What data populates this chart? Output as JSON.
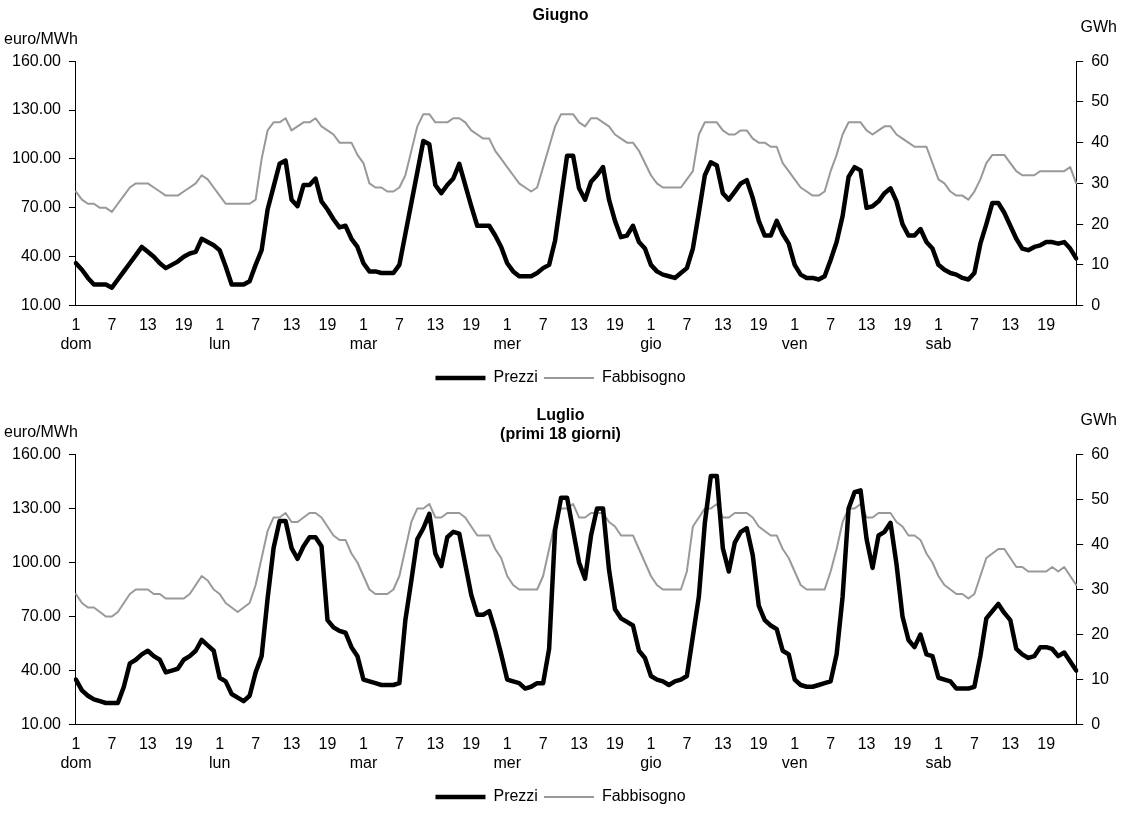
{
  "chart_data": [
    {
      "type": "line",
      "title": "Giugno",
      "ylabel": "euro/MWh",
      "y2label": "GWh",
      "legend": "bottom",
      "grid": false,
      "marker": "none",
      "categories": [
        "1\ndom",
        null,
        null,
        null,
        null,
        null,
        "7",
        null,
        null,
        null,
        null,
        null,
        "13",
        null,
        null,
        null,
        null,
        null,
        "19",
        null,
        null,
        null,
        null,
        null,
        "1\nlun",
        null,
        null,
        null,
        null,
        null,
        "7",
        null,
        null,
        null,
        null,
        null,
        "13",
        null,
        null,
        null,
        null,
        null,
        "19",
        null,
        null,
        null,
        null,
        null,
        "1\nmar",
        null,
        null,
        null,
        null,
        null,
        "7",
        null,
        null,
        null,
        null,
        null,
        "13",
        null,
        null,
        null,
        null,
        null,
        "19",
        null,
        null,
        null,
        null,
        null,
        "1\nmer",
        null,
        null,
        null,
        null,
        null,
        "7",
        null,
        null,
        null,
        null,
        null,
        "13",
        null,
        null,
        null,
        null,
        null,
        "19",
        null,
        null,
        null,
        null,
        null,
        "1\ngio",
        null,
        null,
        null,
        null,
        null,
        "7",
        null,
        null,
        null,
        null,
        null,
        "13",
        null,
        null,
        null,
        null,
        null,
        "19",
        null,
        null,
        null,
        null,
        null,
        "1\nven",
        null,
        null,
        null,
        null,
        null,
        "7",
        null,
        null,
        null,
        null,
        null,
        "13",
        null,
        null,
        null,
        null,
        null,
        "19",
        null,
        null,
        null,
        null,
        null,
        "1\nsab",
        null,
        null,
        null,
        null,
        null,
        "7",
        null,
        null,
        null,
        null,
        null,
        "13",
        null,
        null,
        null,
        null,
        null,
        "19",
        null,
        null,
        null,
        null,
        null
      ],
      "ylim": [
        10,
        160
      ],
      "yticks": [
        {
          "value": 10,
          "label": "10.00"
        },
        {
          "value": 40,
          "label": "40.00"
        },
        {
          "value": 70,
          "label": "70.00"
        },
        {
          "value": 100,
          "label": "100.00"
        },
        {
          "value": 130,
          "label": "130.00"
        },
        {
          "value": 160,
          "label": "160.00"
        }
      ],
      "y2lim": [
        0,
        60
      ],
      "y2ticks": [
        0,
        10,
        20,
        30,
        40,
        50,
        60
      ],
      "series": [
        {
          "name": "Prezzi",
          "color": "#000000",
          "axis": "y",
          "values": [
            36,
            32,
            27,
            23,
            23,
            23,
            21,
            26,
            31,
            36,
            41,
            46,
            43,
            40,
            36,
            33,
            35,
            37,
            40,
            42,
            43,
            51,
            49,
            47,
            44,
            34,
            23,
            23,
            23,
            25,
            35,
            44,
            69,
            83,
            97,
            99,
            75,
            71,
            84,
            84,
            88,
            74,
            69,
            63,
            58,
            59,
            51,
            46,
            36,
            31,
            31,
            30,
            30,
            30,
            35,
            54,
            73,
            92,
            111,
            109,
            84,
            79,
            84,
            88,
            97,
            84,
            71,
            59,
            59,
            59,
            53,
            46,
            36,
            31,
            28,
            28,
            28,
            30,
            33,
            35,
            50,
            76,
            102,
            102,
            82,
            75,
            86,
            90,
            95,
            75,
            62,
            52,
            53,
            59,
            49,
            45,
            35,
            31,
            29,
            28,
            27,
            30,
            33,
            45,
            67,
            90,
            98,
            96,
            79,
            75,
            80,
            85,
            87,
            76,
            62,
            53,
            53,
            62,
            54,
            48,
            35,
            29,
            27,
            27,
            26,
            28,
            38,
            49,
            65,
            89,
            95,
            93,
            70,
            71,
            74,
            79,
            82,
            74,
            60,
            53,
            53,
            57,
            49,
            45,
            35,
            32,
            30,
            29,
            27,
            26,
            30,
            48,
            60,
            73,
            73,
            67,
            59,
            51,
            45,
            44,
            46,
            47,
            49,
            49,
            48,
            49,
            45,
            39
          ]
        },
        {
          "name": "Fabbisogno",
          "color": "#999999",
          "axis": "y2",
          "values": [
            28,
            26,
            25,
            25,
            24,
            24,
            23,
            25,
            27,
            29,
            30,
            30,
            30,
            29,
            28,
            27,
            27,
            27,
            28,
            29,
            30,
            32,
            31,
            29,
            27,
            25,
            25,
            25,
            25,
            25,
            26,
            36,
            43,
            45,
            45,
            46,
            43,
            44,
            45,
            45,
            46,
            44,
            43,
            42,
            40,
            40,
            40,
            37,
            35,
            30,
            29,
            29,
            28,
            28,
            29,
            32,
            38,
            44,
            47,
            47,
            45,
            45,
            45,
            46,
            46,
            45,
            43,
            42,
            41,
            41,
            38,
            36,
            34,
            32,
            30,
            29,
            28,
            29,
            34,
            39,
            44,
            47,
            47,
            47,
            45,
            44,
            46,
            46,
            45,
            44,
            42,
            41,
            40,
            40,
            38,
            35,
            32,
            30,
            29,
            29,
            29,
            29,
            31,
            33,
            42,
            45,
            45,
            45,
            43,
            42,
            42,
            43,
            43,
            41,
            40,
            40,
            39,
            39,
            35,
            33,
            31,
            29,
            28,
            27,
            27,
            28,
            33,
            37,
            42,
            45,
            45,
            45,
            43,
            42,
            43,
            44,
            44,
            42,
            41,
            40,
            39,
            39,
            39,
            35,
            31,
            30,
            28,
            27,
            27,
            26,
            28,
            31,
            35,
            37,
            37,
            37,
            35,
            33,
            32,
            32,
            32,
            33,
            33,
            33,
            33,
            33,
            34,
            30
          ]
        }
      ]
    },
    {
      "type": "line",
      "title": "Luglio",
      "subtitle": "(primi 18 giorni)",
      "ylabel": "euro/MWh",
      "y2label": "GWh",
      "legend": "bottom",
      "grid": false,
      "marker": "none",
      "categories": [
        "1\ndom",
        null,
        null,
        null,
        null,
        null,
        "7",
        null,
        null,
        null,
        null,
        null,
        "13",
        null,
        null,
        null,
        null,
        null,
        "19",
        null,
        null,
        null,
        null,
        null,
        "1\nlun",
        null,
        null,
        null,
        null,
        null,
        "7",
        null,
        null,
        null,
        null,
        null,
        "13",
        null,
        null,
        null,
        null,
        null,
        "19",
        null,
        null,
        null,
        null,
        null,
        "1\nmar",
        null,
        null,
        null,
        null,
        null,
        "7",
        null,
        null,
        null,
        null,
        null,
        "13",
        null,
        null,
        null,
        null,
        null,
        "19",
        null,
        null,
        null,
        null,
        null,
        "1\nmer",
        null,
        null,
        null,
        null,
        null,
        "7",
        null,
        null,
        null,
        null,
        null,
        "13",
        null,
        null,
        null,
        null,
        null,
        "19",
        null,
        null,
        null,
        null,
        null,
        "1\ngio",
        null,
        null,
        null,
        null,
        null,
        "7",
        null,
        null,
        null,
        null,
        null,
        "13",
        null,
        null,
        null,
        null,
        null,
        "19",
        null,
        null,
        null,
        null,
        null,
        "1\nven",
        null,
        null,
        null,
        null,
        null,
        "7",
        null,
        null,
        null,
        null,
        null,
        "13",
        null,
        null,
        null,
        null,
        null,
        "19",
        null,
        null,
        null,
        null,
        null,
        "1\nsab",
        null,
        null,
        null,
        null,
        null,
        "7",
        null,
        null,
        null,
        null,
        null,
        "13",
        null,
        null,
        null,
        null,
        null,
        "19",
        null,
        null,
        null,
        null,
        null
      ],
      "ylim": [
        10,
        160
      ],
      "yticks": [
        {
          "value": 10,
          "label": "10.00"
        },
        {
          "value": 40,
          "label": "40.00"
        },
        {
          "value": 70,
          "label": "70.00"
        },
        {
          "value": 100,
          "label": "100.00"
        },
        {
          "value": 130,
          "label": "130.00"
        },
        {
          "value": 160,
          "label": "160.00"
        }
      ],
      "y2lim": [
        0,
        60
      ],
      "y2ticks": [
        0,
        10,
        20,
        30,
        40,
        50,
        60
      ],
      "series": [
        {
          "name": "Prezzi",
          "color": "#000000",
          "axis": "y",
          "values": [
            35,
            29,
            26,
            24,
            23,
            22,
            22,
            22,
            31,
            44,
            46,
            49,
            51,
            48,
            46,
            39,
            40,
            41,
            46,
            48,
            51,
            57,
            54,
            51,
            36,
            34,
            27,
            25,
            23,
            26,
            39,
            48,
            80,
            108,
            123,
            123,
            108,
            102,
            109,
            114,
            114,
            109,
            68,
            64,
            62,
            61,
            53,
            48,
            35,
            34,
            33,
            32,
            32,
            32,
            33,
            68,
            90,
            113,
            119,
            127,
            105,
            98,
            114,
            117,
            116,
            99,
            82,
            71,
            71,
            73,
            62,
            49,
            35,
            34,
            33,
            30,
            31,
            33,
            33,
            52,
            118,
            136,
            136,
            118,
            100,
            91,
            115,
            130,
            130,
            96,
            74,
            69,
            67,
            65,
            51,
            47,
            37,
            35,
            34,
            32,
            34,
            35,
            37,
            59,
            81,
            122,
            148,
            148,
            108,
            95,
            111,
            117,
            119,
            104,
            76,
            68,
            65,
            63,
            51,
            49,
            35,
            32,
            31,
            31,
            32,
            33,
            34,
            49,
            81,
            130,
            139,
            140,
            113,
            97,
            115,
            117,
            122,
            99,
            70,
            57,
            53,
            60,
            49,
            48,
            36,
            35,
            34,
            30,
            30,
            30,
            31,
            48,
            69,
            73,
            77,
            72,
            68,
            52,
            49,
            47,
            48,
            53,
            53,
            52,
            48,
            50,
            45,
            40
          ]
        },
        {
          "name": "Fabbisogno",
          "color": "#999999",
          "axis": "y2",
          "values": [
            29,
            27,
            26,
            26,
            25,
            24,
            24,
            25,
            27,
            29,
            30,
            30,
            30,
            29,
            29,
            28,
            28,
            28,
            28,
            29,
            31,
            33,
            32,
            30,
            29,
            27,
            26,
            25,
            26,
            27,
            31,
            37,
            43,
            46,
            46,
            47,
            45,
            45,
            46,
            47,
            47,
            46,
            44,
            42,
            41,
            41,
            38,
            36,
            33,
            30,
            29,
            29,
            29,
            30,
            33,
            39,
            45,
            48,
            48,
            49,
            46,
            46,
            47,
            47,
            47,
            46,
            44,
            42,
            42,
            42,
            39,
            37,
            33,
            31,
            30,
            30,
            30,
            30,
            33,
            39,
            45,
            48,
            48,
            49,
            46,
            46,
            47,
            47,
            47,
            45,
            44,
            42,
            42,
            42,
            39,
            36,
            33,
            31,
            30,
            30,
            30,
            30,
            34,
            44,
            46,
            48,
            48,
            49,
            46,
            46,
            47,
            47,
            47,
            46,
            44,
            43,
            42,
            42,
            39,
            37,
            34,
            31,
            30,
            30,
            30,
            30,
            34,
            39,
            45,
            48,
            48,
            49,
            46,
            46,
            47,
            47,
            47,
            45,
            44,
            42,
            42,
            41,
            38,
            36,
            33,
            31,
            30,
            29,
            29,
            28,
            29,
            33,
            37,
            38,
            39,
            39,
            37,
            35,
            35,
            34,
            34,
            34,
            34,
            35,
            34,
            35,
            33,
            31
          ]
        }
      ]
    }
  ]
}
